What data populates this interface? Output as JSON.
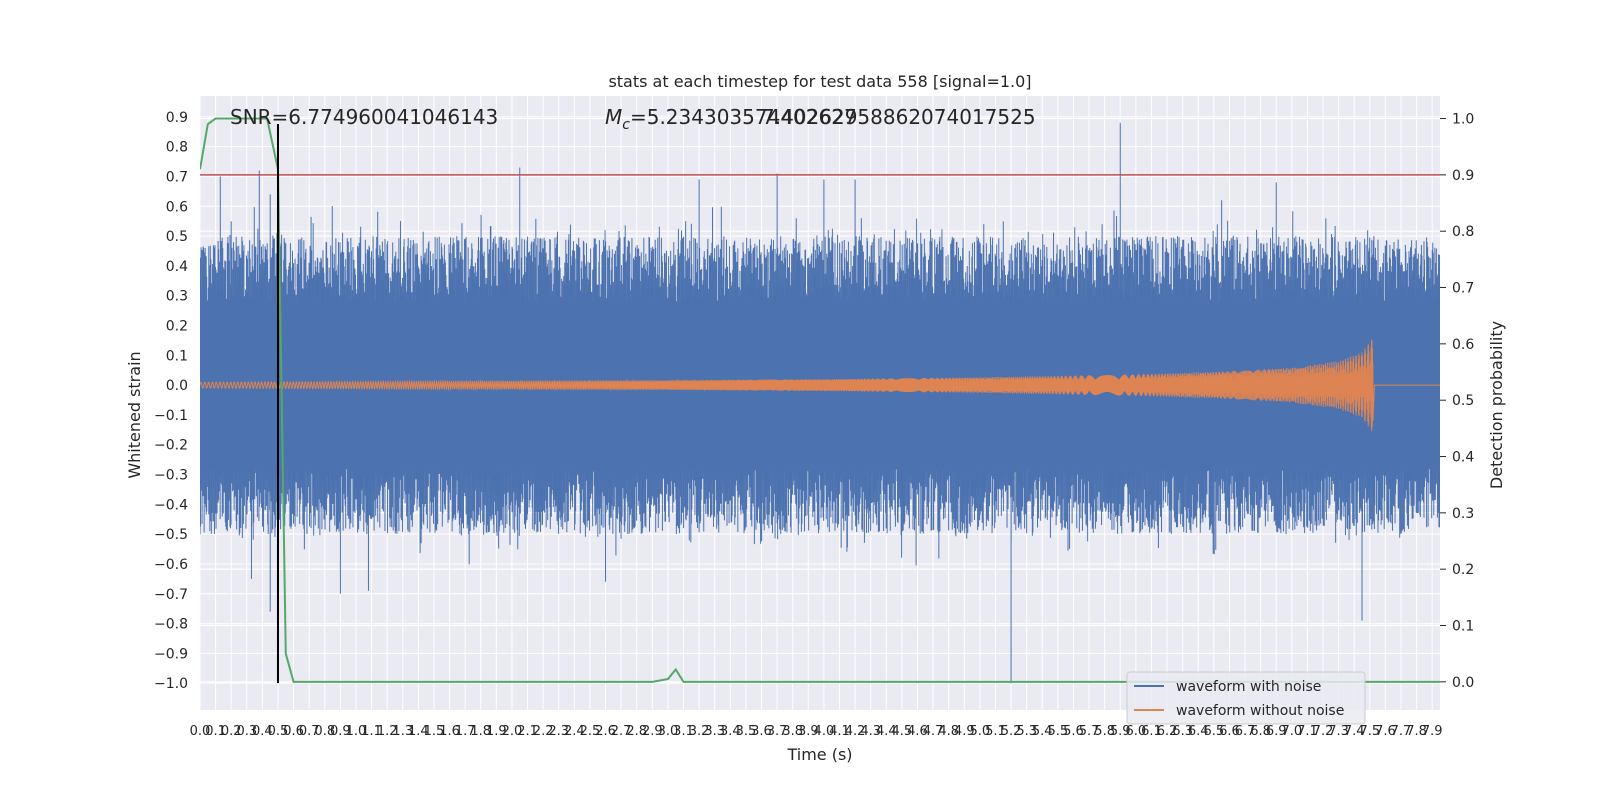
{
  "chart_data": {
    "type": "line",
    "title": "stats at each timestep for test data 558 [signal=1.0]",
    "xlabel": "Time (s)",
    "ylabel": "Whitened strain",
    "y2label": "Detection probability",
    "xlim": [
      0.0,
      7.95
    ],
    "ylim": [
      -1.09,
      0.97
    ],
    "y2lim": [
      -0.05,
      1.04
    ],
    "x_ticks": [
      "0.0",
      "0.1",
      "0.2",
      "0.3",
      "0.4",
      "0.5",
      "0.6",
      "0.7",
      "0.8",
      "0.9",
      "1.0",
      "1.1",
      "1.2",
      "1.3",
      "1.4",
      "1.5",
      "1.6",
      "1.7",
      "1.8",
      "1.9",
      "2.0",
      "2.1",
      "2.2",
      "2.3",
      "2.4",
      "2.5",
      "2.6",
      "2.7",
      "2.8",
      "2.9",
      "3.0",
      "3.1",
      "3.2",
      "3.3",
      "3.4",
      "3.5",
      "3.6",
      "3.7",
      "3.8",
      "3.9",
      "4.0",
      "4.1",
      "4.2",
      "4.3",
      "4.4",
      "4.5",
      "4.6",
      "4.7",
      "4.8",
      "4.9",
      "5.0",
      "5.1",
      "5.2",
      "5.3",
      "5.4",
      "5.5",
      "5.6",
      "5.7",
      "5.8",
      "5.9",
      "6.0",
      "6.1",
      "6.2",
      "6.3",
      "6.4",
      "6.5",
      "6.6",
      "6.7",
      "6.8",
      "6.9",
      "7.0",
      "7.1",
      "7.2",
      "7.3",
      "7.4",
      "7.5",
      "7.6",
      "7.7",
      "7.8",
      "7.9"
    ],
    "y_ticks": [
      "0.9",
      "0.8",
      "0.7",
      "0.6",
      "0.5",
      "0.4",
      "0.3",
      "0.2",
      "0.1",
      "0.0",
      "−0.1",
      "−0.2",
      "−0.3",
      "−0.4",
      "−0.5",
      "−0.6",
      "−0.7",
      "−0.8",
      "−0.9",
      "−1.0"
    ],
    "y_tick_values": [
      0.9,
      0.8,
      0.7,
      0.6,
      0.5,
      0.4,
      0.3,
      0.2,
      0.1,
      0.0,
      -0.1,
      -0.2,
      -0.3,
      -0.4,
      -0.5,
      -0.6,
      -0.7,
      -0.8,
      -0.9,
      -1.0
    ],
    "y2_ticks": [
      "1.0",
      "0.9",
      "0.8",
      "0.7",
      "0.6",
      "0.5",
      "0.4",
      "0.3",
      "0.2",
      "0.1",
      "0.0"
    ],
    "y2_tick_values": [
      1.0,
      0.9,
      0.8,
      0.7,
      0.6,
      0.5,
      0.4,
      0.3,
      0.2,
      0.1,
      0.0
    ],
    "annotations": {
      "snr": "SNR=6.774960041046143",
      "mc": "=5.234303574402627",
      "mc_symbol": "M",
      "mc_subscript": "c",
      "overlap": "7.40262958862074017525"
    },
    "threshold": 0.9,
    "marker_time": 0.5,
    "legend": {
      "placement": "lower-right",
      "entries": [
        "waveform with noise",
        "waveform without noise"
      ]
    },
    "series": [
      {
        "name": "waveform with noise",
        "color": "#4c72b0",
        "envelope": "noise band about ±0.3 with spikes",
        "spikes": [
          [
            0.13,
            0.7
          ],
          [
            0.2,
            0.55
          ],
          [
            0.33,
            -0.65
          ],
          [
            0.38,
            0.72
          ],
          [
            0.45,
            -0.76
          ],
          [
            0.45,
            0.64
          ],
          [
            0.9,
            -0.7
          ],
          [
            1.08,
            -0.69
          ],
          [
            2.05,
            0.73
          ],
          [
            2.6,
            -0.66
          ],
          [
            3.2,
            0.69
          ],
          [
            3.7,
            0.71
          ],
          [
            4.0,
            0.69
          ],
          [
            4.2,
            0.69
          ],
          [
            5.15,
            0.55
          ],
          [
            5.2,
            -1.0
          ],
          [
            5.9,
            0.88
          ],
          [
            6.55,
            0.62
          ],
          [
            6.9,
            0.68
          ],
          [
            7.45,
            -0.79
          ]
        ]
      },
      {
        "name": "waveform without noise",
        "color": "#dd8452",
        "points": [
          [
            0.0,
            0.01
          ],
          [
            1.0,
            0.012
          ],
          [
            2.0,
            0.014
          ],
          [
            3.0,
            0.016
          ],
          [
            4.0,
            0.02
          ],
          [
            5.0,
            0.026
          ],
          [
            6.0,
            0.036
          ],
          [
            6.5,
            0.044
          ],
          [
            7.0,
            0.058
          ],
          [
            7.3,
            0.08
          ],
          [
            7.45,
            0.11
          ],
          [
            7.52,
            0.16
          ],
          [
            7.53,
            0.0
          ]
        ]
      },
      {
        "name": "",
        "color": "#55a868",
        "axis": "right",
        "points": [
          [
            0.0,
            0.91
          ],
          [
            0.05,
            0.99
          ],
          [
            0.1,
            1.0
          ],
          [
            0.3,
            1.0
          ],
          [
            0.43,
            1.0
          ],
          [
            0.5,
            0.91
          ],
          [
            0.55,
            0.05
          ],
          [
            0.6,
            0.0
          ],
          [
            1.0,
            0.0
          ],
          [
            2.0,
            0.0
          ],
          [
            2.9,
            0.0
          ],
          [
            3.0,
            0.005
          ],
          [
            3.05,
            0.022
          ],
          [
            3.1,
            0.0
          ],
          [
            4.0,
            0.0
          ],
          [
            5.0,
            0.0
          ],
          [
            6.0,
            0.0
          ],
          [
            7.0,
            0.0
          ],
          [
            7.95,
            0.0
          ]
        ]
      }
    ]
  }
}
